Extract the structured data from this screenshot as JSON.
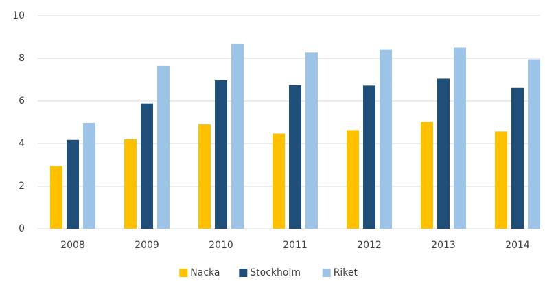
{
  "chart_data": {
    "type": "bar",
    "categories": [
      "2008",
      "2009",
      "2010",
      "2011",
      "2012",
      "2013",
      "2014"
    ],
    "series": [
      {
        "name": "Nacka",
        "color": "#ffc000",
        "values": [
          2.95,
          4.2,
          4.9,
          4.47,
          4.63,
          5.02,
          4.57
        ]
      },
      {
        "name": "Stockholm",
        "color": "#1f4e79",
        "values": [
          4.17,
          5.88,
          6.97,
          6.75,
          6.73,
          7.05,
          6.62
        ]
      },
      {
        "name": "Riket",
        "color": "#9dc3e6",
        "values": [
          4.97,
          7.65,
          8.68,
          8.28,
          8.4,
          8.5,
          7.95
        ]
      }
    ],
    "ylim": [
      0,
      10
    ],
    "yticks": [
      0,
      2,
      4,
      6,
      8,
      10
    ],
    "grid": true,
    "legend": "bottom"
  }
}
